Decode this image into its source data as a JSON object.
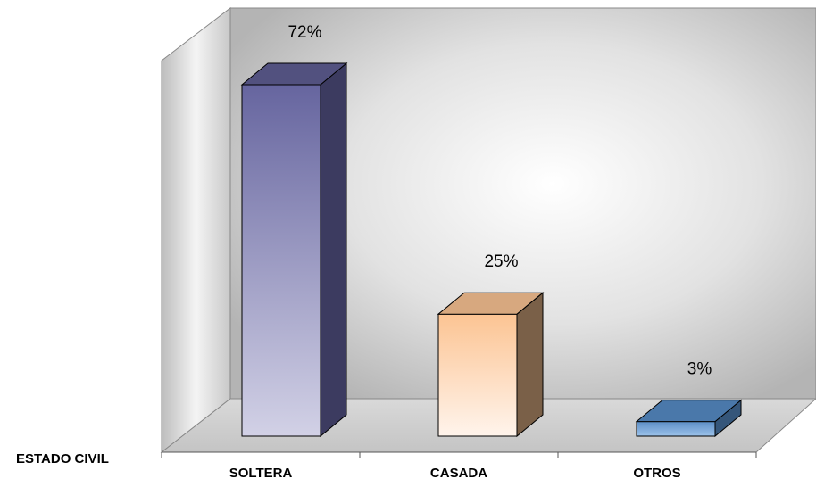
{
  "chart_data": {
    "type": "bar",
    "title": "",
    "xlabel": "ESTADO CIVIL",
    "ylabel": "",
    "categories": [
      "SOLTERA",
      "CASADA",
      "OTROS"
    ],
    "values": [
      72,
      25,
      3
    ],
    "data_labels": [
      "72%",
      "25%",
      "3%"
    ],
    "ylim": [
      0,
      80
    ],
    "grid": false,
    "legend": "none",
    "three_d": true,
    "colors": [
      "#6b6aa4",
      "#fbc89c",
      "#5b8fc8"
    ]
  }
}
